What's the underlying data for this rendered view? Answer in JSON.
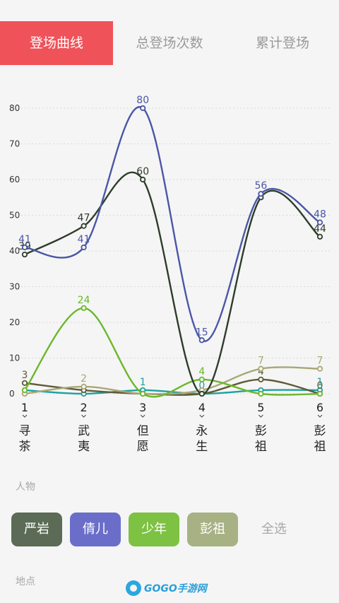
{
  "tabs": [
    {
      "label": "登场曲线",
      "active": true
    },
    {
      "label": "总登场次数",
      "active": false
    },
    {
      "label": "累计登场",
      "active": false
    }
  ],
  "chart_data": {
    "type": "line",
    "ylim": [
      0,
      85
    ],
    "yticks": [
      0,
      10,
      20,
      30,
      40,
      50,
      60,
      70,
      80
    ],
    "x": [
      1,
      2,
      3,
      4,
      5,
      6
    ],
    "xlabels": [
      "寻茶",
      "武夷",
      "但愿",
      "永生",
      "彭祖",
      "彭祖"
    ],
    "series": [
      {
        "name": "严岩",
        "color": "#2e3d2b",
        "values": [
          39,
          47,
          60,
          0,
          55,
          44
        ],
        "point_labels": [
          "39",
          "47",
          "60",
          "",
          "",
          "44"
        ]
      },
      {
        "name": "倩儿",
        "color": "#4a56a6",
        "values": [
          41,
          41,
          80,
          15,
          56,
          48
        ],
        "point_labels": [
          "41",
          "41",
          "80",
          "15",
          "56",
          "48"
        ]
      },
      {
        "name": "少年",
        "color": "#6ab82a",
        "values": [
          1,
          24,
          0,
          4,
          0,
          0
        ],
        "point_labels": [
          "",
          "24",
          "",
          "4",
          "",
          ""
        ]
      },
      {
        "name": "彭祖",
        "color": "#a8a877",
        "values": [
          0,
          2,
          0,
          1,
          7,
          7
        ],
        "point_labels": [
          "",
          "2",
          "",
          "",
          "7",
          "7"
        ]
      },
      {
        "name": "",
        "color": "#5f5a37",
        "values": [
          3,
          1,
          0,
          0,
          4,
          0
        ],
        "point_labels": [
          "3",
          "",
          "",
          "",
          "4",
          "0"
        ]
      },
      {
        "name": "",
        "color": "#1fa0a0",
        "values": [
          1,
          0,
          1,
          0,
          1,
          1
        ],
        "point_labels": [
          "",
          "",
          "1",
          "0",
          "",
          "1"
        ]
      }
    ]
  },
  "filters": {
    "person_label": "人物",
    "place_label": "地点",
    "chips": [
      {
        "label": "严岩",
        "color": "#5b6b56"
      },
      {
        "label": "倩儿",
        "color": "#6a6ec9"
      },
      {
        "label": "少年",
        "color": "#7dc242"
      },
      {
        "label": "彭祖",
        "color": "#a7b284"
      }
    ],
    "select_all": "全选"
  },
  "watermark": {
    "text": "GOGO手游网"
  }
}
